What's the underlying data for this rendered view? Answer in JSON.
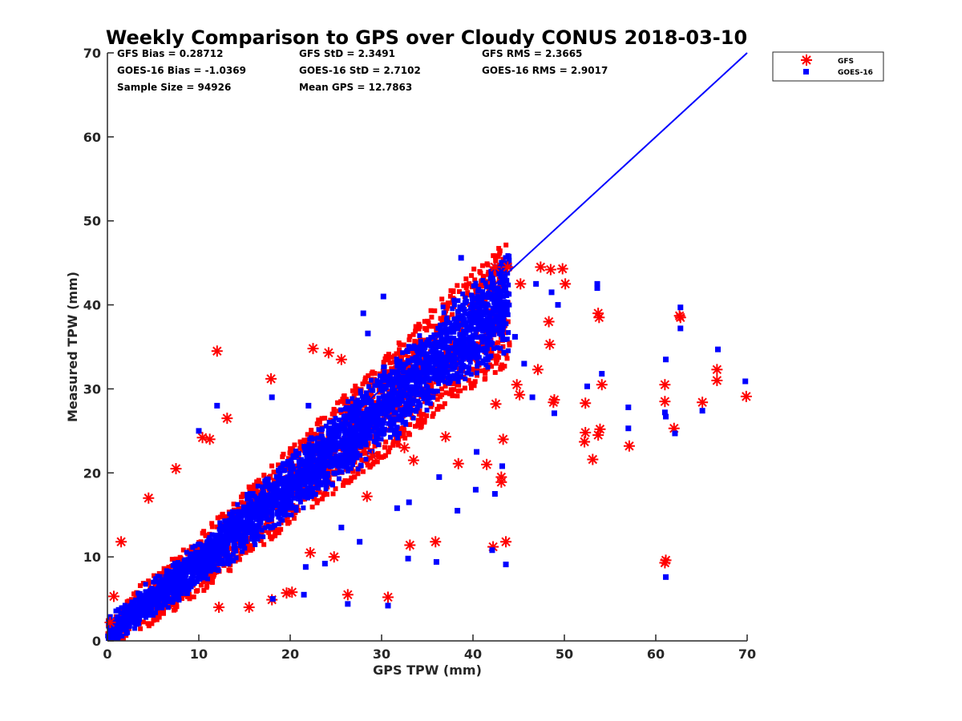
{
  "chart_data": {
    "type": "scatter",
    "title": "Weekly Comparison to GPS over Cloudy CONUS 2018-03-10",
    "xlabel": "GPS TPW (mm)",
    "ylabel": "Measured TPW (mm)",
    "xlim": [
      0,
      70
    ],
    "ylim": [
      0,
      70
    ],
    "xticks": [
      0,
      10,
      20,
      30,
      40,
      50,
      60,
      70
    ],
    "yticks": [
      0,
      10,
      20,
      30,
      40,
      50,
      60,
      70
    ],
    "grid": false,
    "legend_position": "top-right outside",
    "stats": [
      [
        "GFS Bias = 0.28712",
        "GFS StD = 2.3491",
        "GFS RMS = 2.3665"
      ],
      [
        "GOES-16 Bias = -1.0369",
        "GOES-16 StD = 2.7102",
        "GOES-16 RMS = 2.9017"
      ],
      [
        "Sample Size = 94926",
        "Mean GPS = 12.7863",
        ""
      ]
    ],
    "reference_line": {
      "x": [
        0,
        70
      ],
      "y": [
        0,
        70
      ],
      "color": "#0000ff"
    },
    "dense_cloud": {
      "centerline": [
        [
          0,
          1
        ],
        [
          10,
          9
        ],
        [
          20,
          18.5
        ],
        [
          30,
          27.5
        ],
        [
          38,
          35.5
        ],
        [
          44,
          40.5
        ]
      ],
      "spread": 4.5
    },
    "series": [
      {
        "name": "GFS",
        "marker": "asterisk",
        "color": "#ff0000",
        "points": [
          [
            17.9,
            31.2
          ],
          [
            13.1,
            26.5
          ],
          [
            10.4,
            24.2
          ],
          [
            11.2,
            24
          ],
          [
            7.5,
            20.5
          ],
          [
            4.5,
            17
          ],
          [
            1.5,
            11.8
          ],
          [
            0.7,
            5.3
          ],
          [
            0.3,
            2.2
          ],
          [
            42.4,
            44.5
          ],
          [
            43.8,
            44.5
          ],
          [
            47.4,
            44.5
          ],
          [
            48.5,
            44.2
          ],
          [
            49.8,
            44.3
          ],
          [
            50.1,
            42.5
          ],
          [
            45.2,
            42.5
          ],
          [
            48.3,
            38
          ],
          [
            48.4,
            35.3
          ],
          [
            53.7,
            39
          ],
          [
            53.8,
            38.5
          ],
          [
            62.7,
            38.5
          ],
          [
            62.6,
            38.7
          ],
          [
            54.1,
            30.5
          ],
          [
            61,
            30.5
          ],
          [
            66.7,
            31
          ],
          [
            66.7,
            32.3
          ],
          [
            69.9,
            29.1
          ],
          [
            65.1,
            28.4
          ],
          [
            61,
            28.5
          ],
          [
            48.9,
            28.7
          ],
          [
            48.8,
            28.4
          ],
          [
            52.3,
            28.3
          ],
          [
            53.9,
            25.2
          ],
          [
            53.7,
            24.5
          ],
          [
            52.3,
            24.8
          ],
          [
            52.2,
            23.7
          ],
          [
            57.1,
            23.2
          ],
          [
            62,
            25.3
          ],
          [
            53.1,
            21.6
          ],
          [
            43.3,
            24
          ],
          [
            47.1,
            32.3
          ],
          [
            44.8,
            30.5
          ],
          [
            45.1,
            29.3
          ],
          [
            42.5,
            28.2
          ],
          [
            41.5,
            21
          ],
          [
            43.1,
            19.5
          ],
          [
            43.1,
            18.9
          ],
          [
            33.1,
            11.4
          ],
          [
            35.9,
            11.8
          ],
          [
            43.6,
            11.8
          ],
          [
            42.2,
            11.2
          ],
          [
            61.1,
            9.6
          ],
          [
            61,
            9.3
          ],
          [
            26.3,
            5.5
          ],
          [
            30.7,
            5.2
          ],
          [
            24.8,
            10
          ],
          [
            22.2,
            10.5
          ],
          [
            15.5,
            4
          ],
          [
            12.2,
            4
          ],
          [
            18,
            4.9
          ],
          [
            19.6,
            5.7
          ],
          [
            29,
            22
          ],
          [
            33.5,
            21.5
          ],
          [
            38.4,
            21.1
          ],
          [
            37,
            24.3
          ],
          [
            12,
            34.5
          ],
          [
            24.2,
            34.3
          ],
          [
            25.6,
            33.5
          ],
          [
            22.5,
            34.8
          ],
          [
            28.4,
            17.2
          ],
          [
            20.2,
            5.8
          ],
          [
            32.5,
            23
          ]
        ]
      },
      {
        "name": "GOES-16",
        "marker": "square",
        "color": "#0000ff",
        "points": [
          [
            38.7,
            45.6
          ],
          [
            46.9,
            42.5
          ],
          [
            53.6,
            42.5
          ],
          [
            53.6,
            42
          ],
          [
            48.6,
            41.5
          ],
          [
            49.3,
            40
          ],
          [
            62.7,
            39.7
          ],
          [
            62.7,
            37.2
          ],
          [
            66.8,
            34.7
          ],
          [
            61.1,
            33.5
          ],
          [
            54.1,
            31.8
          ],
          [
            69.8,
            30.9
          ],
          [
            52.5,
            30.3
          ],
          [
            57,
            27.8
          ],
          [
            61,
            27.2
          ],
          [
            65.1,
            27.4
          ],
          [
            57,
            25.3
          ],
          [
            61.1,
            26.7
          ],
          [
            62.1,
            24.7
          ],
          [
            48.9,
            27.1
          ],
          [
            61.1,
            7.6
          ],
          [
            43.6,
            9.1
          ],
          [
            42.1,
            10.8
          ],
          [
            36,
            9.4
          ],
          [
            32.9,
            9.8
          ],
          [
            30.7,
            4.2
          ],
          [
            26.3,
            4.4
          ],
          [
            18.1,
            5
          ],
          [
            21.5,
            5.5
          ],
          [
            43.2,
            20.8
          ],
          [
            42.4,
            17.5
          ],
          [
            38.3,
            15.5
          ],
          [
            31.7,
            15.8
          ],
          [
            46.5,
            29
          ],
          [
            45.6,
            33
          ],
          [
            44.6,
            36.2
          ],
          [
            28.5,
            36.6
          ],
          [
            30.2,
            41
          ],
          [
            28,
            39
          ],
          [
            22,
            28
          ],
          [
            18,
            29
          ],
          [
            12,
            28
          ],
          [
            10,
            25
          ],
          [
            40.4,
            22.5
          ],
          [
            36.3,
            19.5
          ],
          [
            40.3,
            18
          ],
          [
            33,
            16.5
          ],
          [
            27.6,
            11.8
          ],
          [
            25.6,
            13.5
          ],
          [
            21.7,
            8.8
          ],
          [
            23.8,
            9.2
          ]
        ]
      }
    ]
  }
}
